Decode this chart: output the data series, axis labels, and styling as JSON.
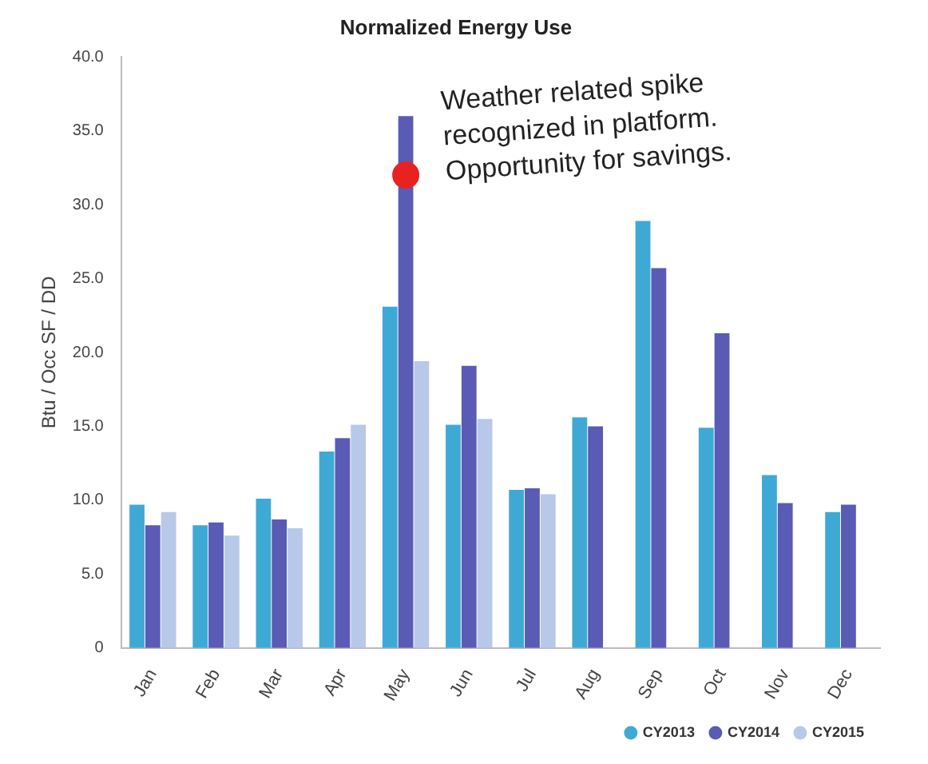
{
  "chart_data": {
    "type": "bar",
    "title": "Normalized Energy Use",
    "ylabel": "Btu / Occ SF / DD",
    "categories": [
      "Jan",
      "Feb",
      "Mar",
      "Apr",
      "May",
      "Jun",
      "Jul",
      "Aug",
      "Sep",
      "Oct",
      "Nov",
      "Dec"
    ],
    "series": [
      {
        "name": "CY2013",
        "color": "#3fa9d6",
        "values": [
          9.7,
          8.3,
          10.1,
          13.3,
          23.1,
          15.1,
          10.7,
          15.6,
          28.9,
          14.9,
          11.7,
          9.2
        ]
      },
      {
        "name": "CY2014",
        "color": "#5a5bb5",
        "values": [
          8.3,
          8.5,
          8.7,
          14.2,
          36.0,
          19.1,
          10.8,
          15.0,
          25.7,
          21.3,
          9.8,
          9.7
        ]
      },
      {
        "name": "CY2015",
        "color": "#b8c8e8",
        "values": [
          9.2,
          7.6,
          8.1,
          15.1,
          19.4,
          15.5,
          10.4,
          null,
          null,
          null,
          null,
          null
        ]
      },
      {
        "type": "scatter",
        "color": "#e8231f",
        "x": [
          "May"
        ],
        "values": [
          32
        ]
      }
    ],
    "ylim": [
      0,
      40
    ],
    "yticks": [
      {
        "value": 0,
        "label": "0"
      },
      {
        "value": 5,
        "label": "5.0"
      },
      {
        "value": 10,
        "label": "10.0"
      },
      {
        "value": 15,
        "label": "15.0"
      },
      {
        "value": 20,
        "label": "20.0"
      },
      {
        "value": 25,
        "label": "25.0"
      },
      {
        "value": 30,
        "label": "30.0"
      },
      {
        "value": 35,
        "label": "35.0"
      },
      {
        "value": 40,
        "label": "40.0"
      }
    ],
    "grid": false,
    "legend": "bottom right",
    "marker": "circle",
    "annotations": [
      "Weather related spike recognized in platform. Opportunity for savings."
    ]
  }
}
